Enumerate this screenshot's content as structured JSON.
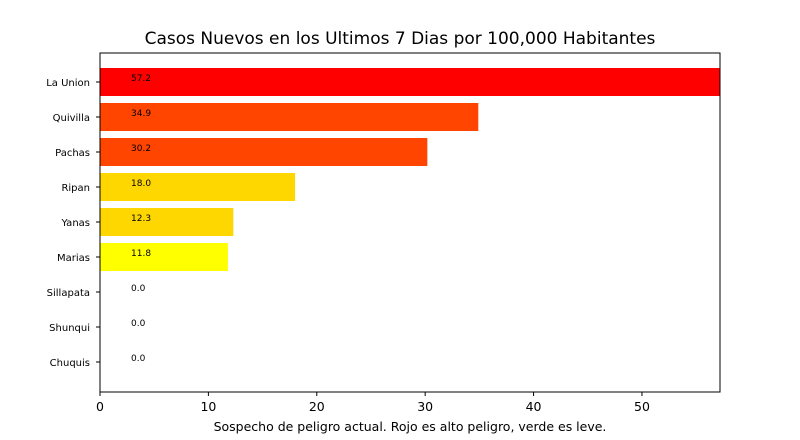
{
  "chart_data": {
    "type": "bar",
    "orientation": "horizontal",
    "title": "Casos Nuevos en los Ultimos 7 Dias por 100,000 Habitantes",
    "xlabel": "Sospecho de peligro actual. Rojo es alto peligro, verde es leve.",
    "ylabel": "",
    "categories": [
      "La Union",
      "Quivilla",
      "Pachas",
      "Ripan",
      "Yanas",
      "Marias",
      "Sillapata",
      "Shunqui",
      "Chuquis"
    ],
    "values": [
      57.2,
      34.9,
      30.2,
      18.0,
      12.3,
      11.8,
      0.0,
      0.0,
      0.0
    ],
    "value_labels": [
      "57.2",
      "34.9",
      "30.2",
      "18.0",
      "12.3",
      "11.8",
      "0.0",
      "0.0",
      "0.0"
    ],
    "colors": [
      "#ff0000",
      "#ff4500",
      "#ff4500",
      "#ffd700",
      "#ffd700",
      "#ffff00",
      "#008000",
      "#008000",
      "#008000"
    ],
    "xlim": [
      0,
      57.2
    ],
    "xticks": [
      0,
      10,
      20,
      30,
      40,
      50
    ],
    "xtick_labels": [
      "0",
      "10",
      "20",
      "30",
      "40",
      "50"
    ],
    "grid": false,
    "legend": "none"
  }
}
